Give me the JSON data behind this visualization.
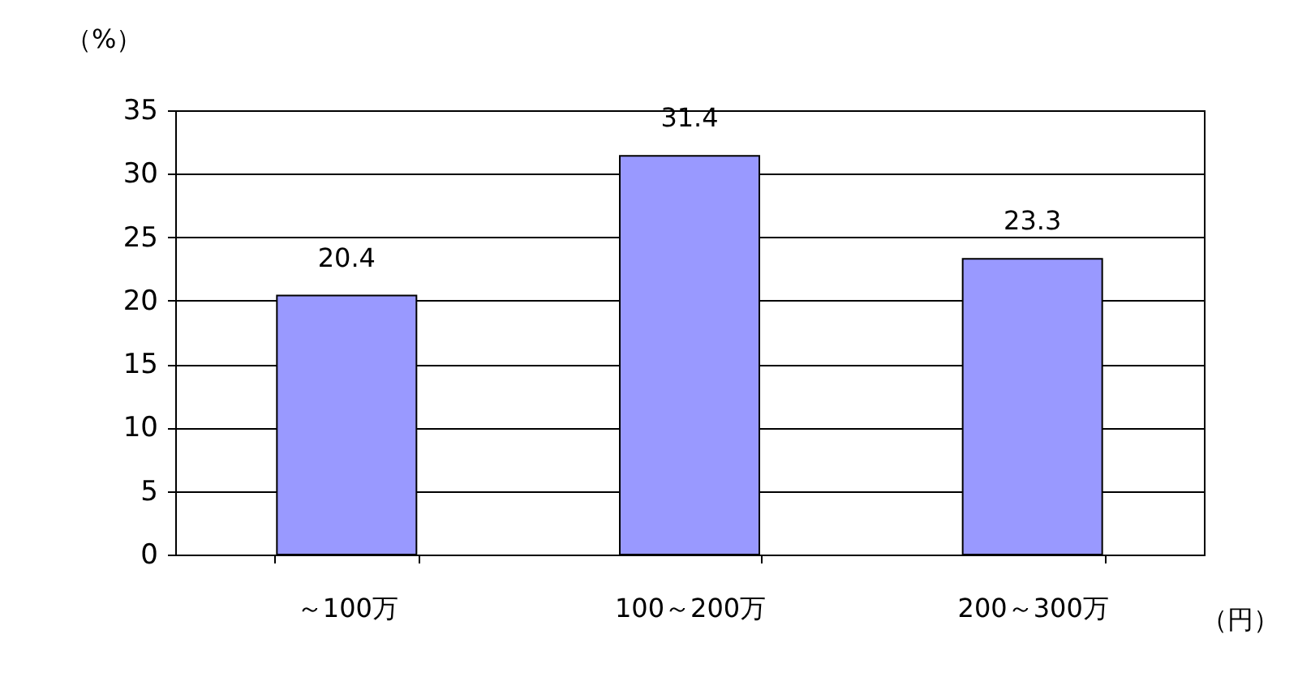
{
  "chart_data": {
    "type": "bar",
    "ylabel": "（%）",
    "xlabel": "（円）",
    "categories": [
      "～100万",
      "100～200万",
      "200～300万"
    ],
    "values": [
      20.4,
      31.4,
      23.3
    ],
    "color": "#9999ff",
    "ylim": [
      0,
      35
    ],
    "yticks": [
      0,
      5,
      10,
      15,
      20,
      25,
      30,
      35
    ],
    "grid": "y",
    "data_labels": true
  }
}
